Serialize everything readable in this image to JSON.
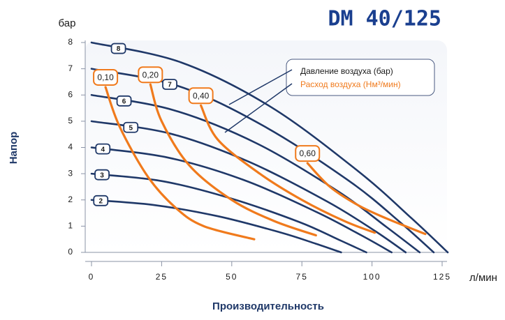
{
  "chart_data": {
    "type": "line",
    "title": "DM 40/125",
    "y_unit": "бар",
    "x_unit": "л/мин",
    "ylabel": "Напор",
    "xlabel": "Производительность",
    "legend": [
      "Давление воздуха (бар)",
      "Расход воздуха (Нм³/мин)"
    ],
    "xlim": [
      0,
      125
    ],
    "ylim": [
      0,
      8
    ],
    "xticks": [
      0,
      25,
      50,
      75,
      100,
      125
    ],
    "yticks": [
      0,
      1,
      2,
      3,
      4,
      5,
      6,
      7,
      8
    ],
    "series": [
      {
        "name": "2",
        "color": "#1f3868",
        "x": [
          0,
          22,
          45,
          67,
          80,
          89
        ],
        "values": [
          2,
          1.81,
          1.38,
          0.77,
          0.33,
          0
        ]
      },
      {
        "name": "3",
        "color": "#1f3868",
        "x": [
          0,
          25,
          49,
          74,
          88,
          98
        ],
        "values": [
          3,
          2.72,
          2.08,
          1.16,
          0.49,
          0
        ]
      },
      {
        "name": "4",
        "color": "#1f3868",
        "x": [
          0,
          27,
          54,
          80,
          96,
          107
        ],
        "values": [
          4,
          3.62,
          2.77,
          1.55,
          0.66,
          0
        ]
      },
      {
        "name": "5",
        "color": "#1f3868",
        "x": [
          0,
          28,
          56,
          84,
          101,
          112
        ],
        "values": [
          5,
          4.53,
          3.46,
          1.94,
          0.82,
          0
        ]
      },
      {
        "name": "6",
        "color": "#1f3868",
        "x": [
          0,
          29,
          59,
          88,
          105,
          117
        ],
        "values": [
          6,
          5.43,
          4.15,
          2.32,
          0.98,
          0
        ]
      },
      {
        "name": "7",
        "color": "#1f3868",
        "x": [
          0,
          31,
          61,
          92,
          110,
          122
        ],
        "values": [
          7,
          6.34,
          4.84,
          2.71,
          1.15,
          0
        ]
      },
      {
        "name": "8",
        "color": "#1f3868",
        "x": [
          0,
          32,
          64,
          95,
          114,
          127
        ],
        "values": [
          8,
          7.24,
          5.54,
          3.1,
          1.31,
          0
        ]
      },
      {
        "name": "0,10",
        "color": "#f07a1c",
        "x": [
          5,
          10,
          20,
          30,
          40,
          58
        ],
        "values": [
          6.3,
          4.8,
          2.9,
          1.7,
          1,
          0.5
        ]
      },
      {
        "name": "0,20",
        "color": "#f07a1c",
        "x": [
          21,
          25,
          35,
          50,
          65,
          80
        ],
        "values": [
          6.4,
          5,
          3.3,
          2,
          1.2,
          0.65
        ]
      },
      {
        "name": "0,40",
        "color": "#f07a1c",
        "x": [
          39,
          45,
          60,
          75,
          90,
          101
        ],
        "values": [
          5.6,
          4.3,
          3,
          2,
          1.2,
          0.75
        ]
      },
      {
        "name": "0,60",
        "color": "#f07a1c",
        "x": [
          77,
          85,
          95,
          105,
          119
        ],
        "values": [
          3.4,
          2.5,
          1.8,
          1.3,
          0.7
        ]
      }
    ]
  }
}
